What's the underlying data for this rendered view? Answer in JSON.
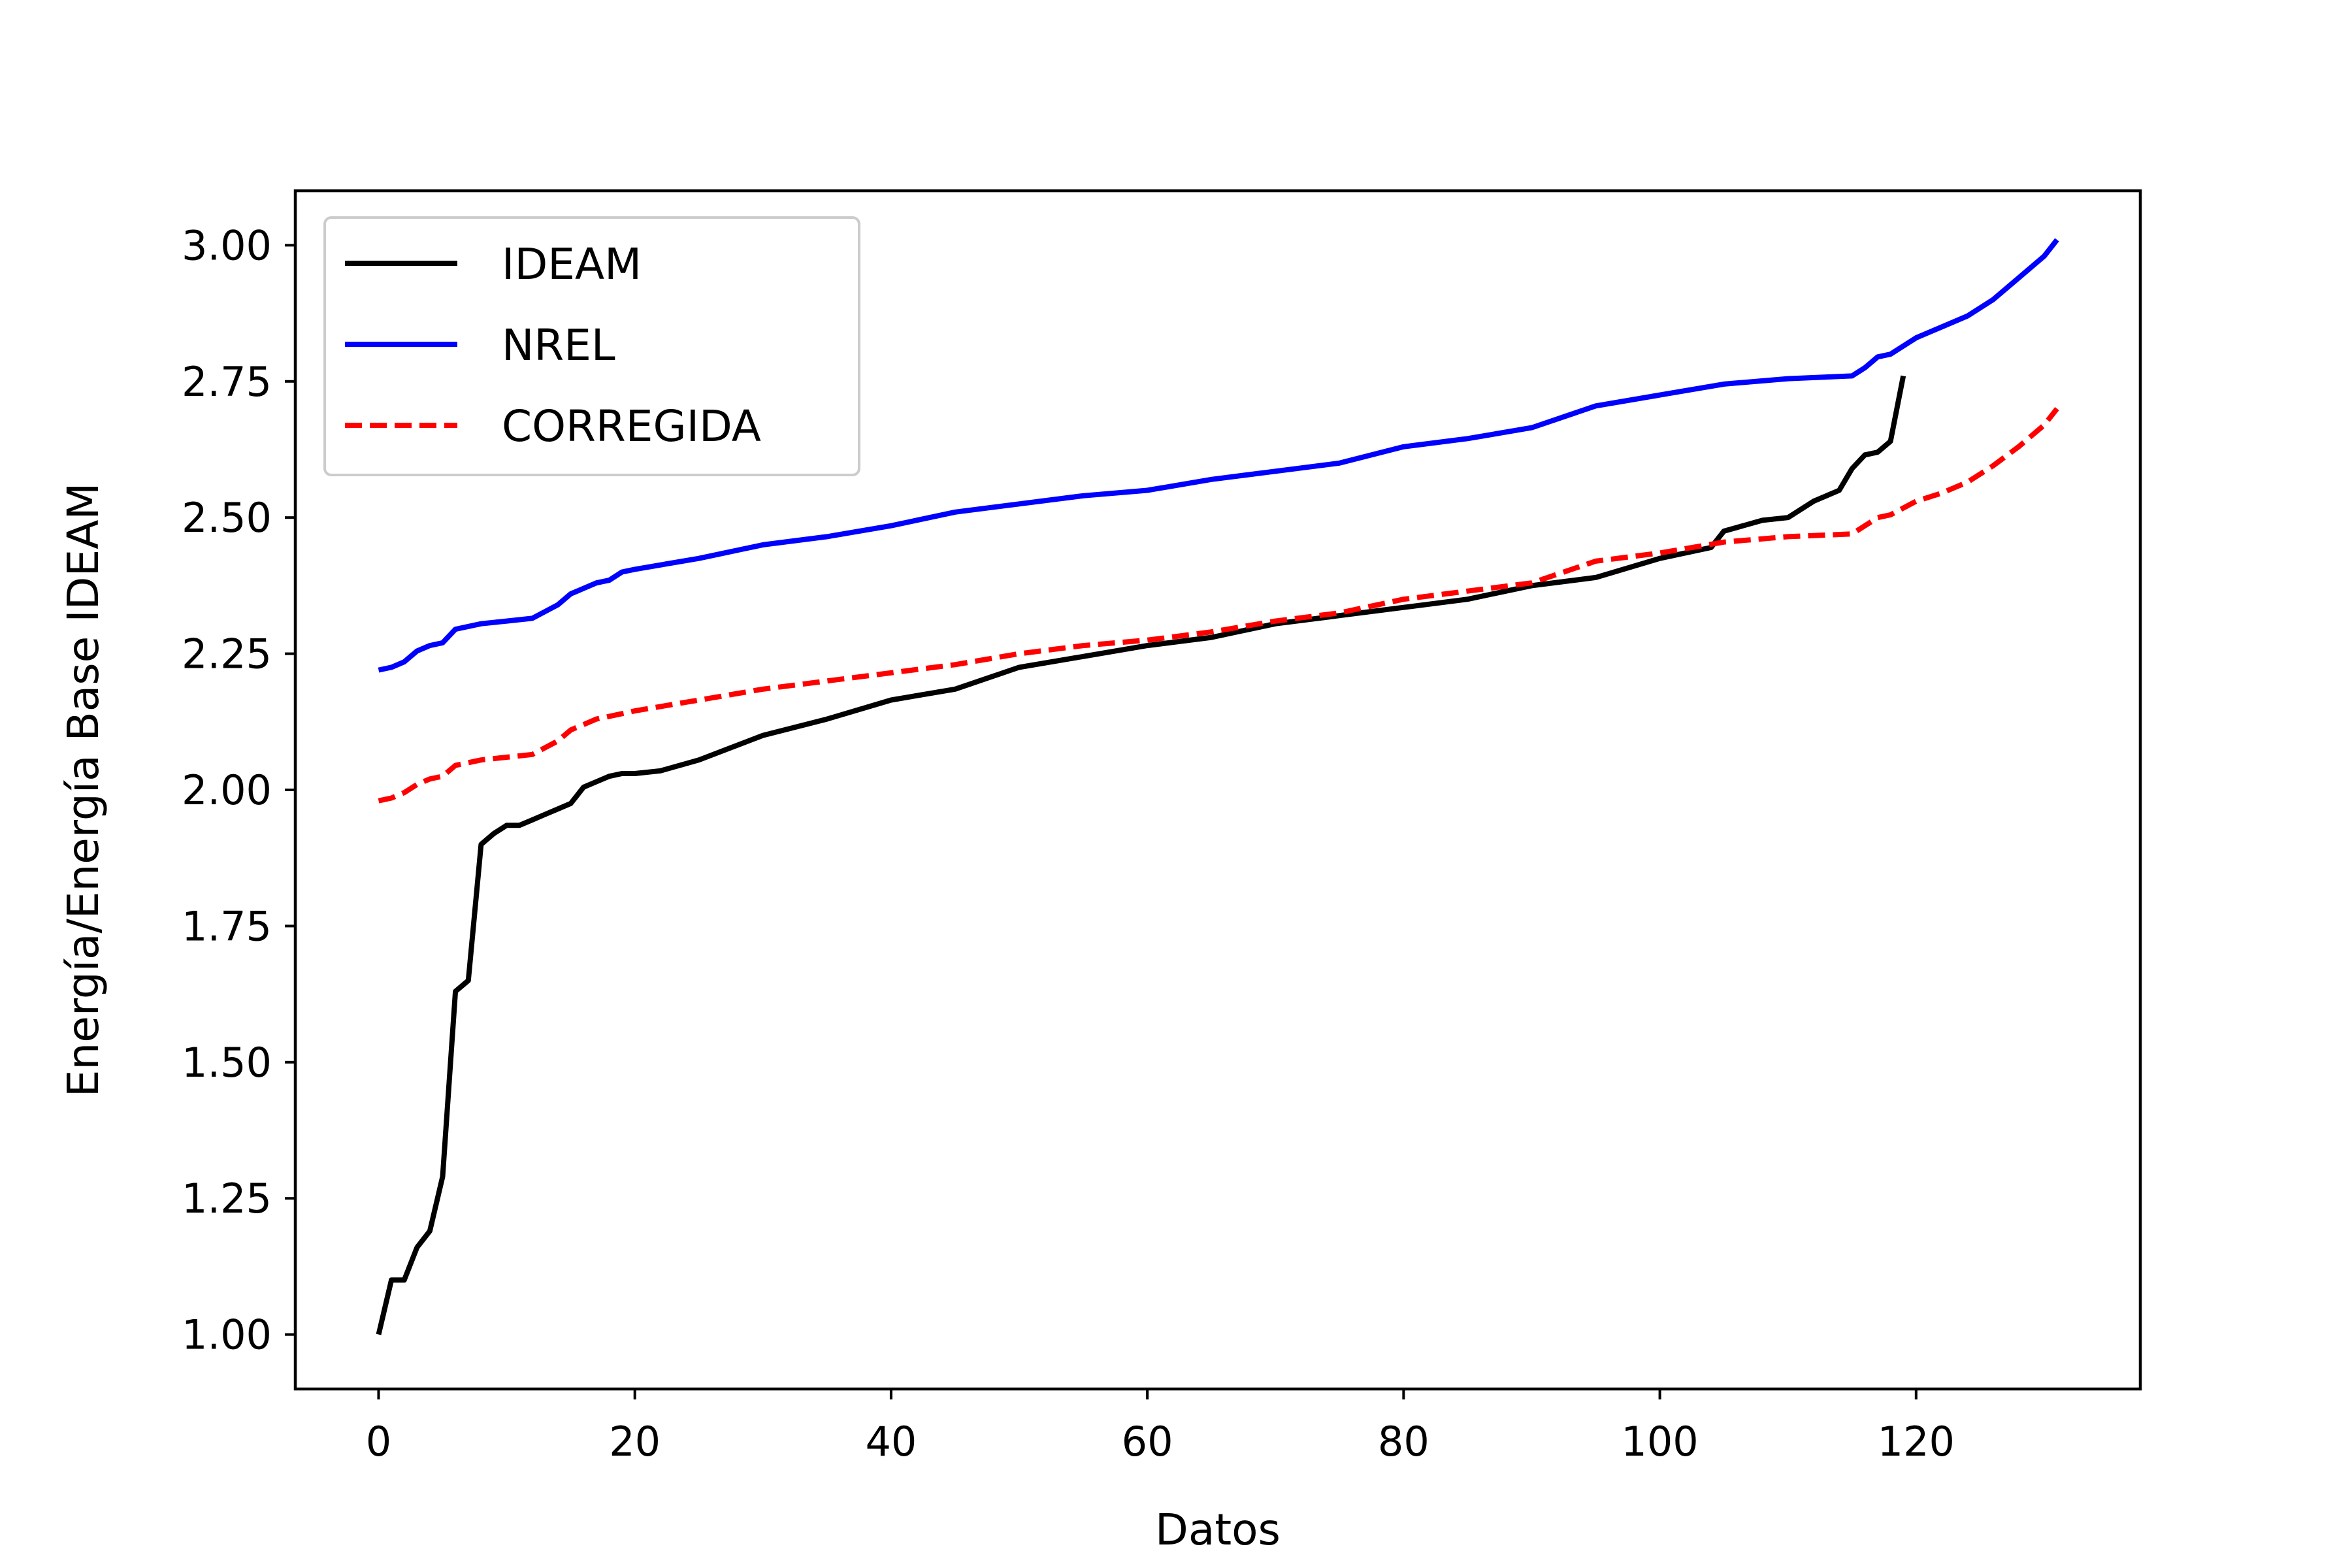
{
  "chart_data": {
    "type": "line",
    "title": "",
    "xlabel": "Datos",
    "ylabel": "Energía/Energía Base IDEAM",
    "xlim": [
      -6.5,
      137.5
    ],
    "ylim": [
      0.9,
      3.1
    ],
    "xticks": [
      0,
      20,
      40,
      60,
      80,
      100,
      120
    ],
    "yticks": [
      1.0,
      1.25,
      1.5,
      1.75,
      2.0,
      2.25,
      2.5,
      2.75,
      3.0
    ],
    "xtick_labels": [
      "0",
      "20",
      "40",
      "60",
      "80",
      "100",
      "120"
    ],
    "ytick_labels": [
      "1.00",
      "1.25",
      "1.50",
      "1.75",
      "2.00",
      "2.25",
      "2.50",
      "2.75",
      "3.00"
    ],
    "grid": false,
    "legend_position": "top-left",
    "series": [
      {
        "name": "IDEAM",
        "color": "#000000",
        "style": "solid",
        "x": [
          0,
          1,
          2,
          3,
          4,
          5,
          6,
          7,
          8,
          9,
          10,
          11,
          12,
          13,
          14,
          15,
          16,
          17,
          18,
          19,
          20,
          22,
          25,
          30,
          35,
          40,
          45,
          50,
          55,
          60,
          65,
          70,
          75,
          80,
          85,
          90,
          95,
          100,
          104,
          105,
          108,
          110,
          112,
          114,
          115,
          116,
          117,
          118,
          119
        ],
        "y": [
          1.0,
          1.1,
          1.1,
          1.16,
          1.19,
          1.29,
          1.63,
          1.65,
          1.9,
          1.92,
          1.935,
          1.935,
          1.945,
          1.955,
          1.965,
          1.975,
          2.005,
          2.015,
          2.025,
          2.03,
          2.03,
          2.035,
          2.055,
          2.1,
          2.13,
          2.165,
          2.185,
          2.225,
          2.245,
          2.265,
          2.28,
          2.305,
          2.32,
          2.335,
          2.35,
          2.375,
          2.39,
          2.425,
          2.445,
          2.475,
          2.495,
          2.5,
          2.53,
          2.55,
          2.59,
          2.615,
          2.62,
          2.64,
          2.76
        ]
      },
      {
        "name": "NREL",
        "color": "#0000ff",
        "style": "solid",
        "x": [
          0,
          1,
          2,
          3,
          4,
          5,
          6,
          8,
          10,
          12,
          14,
          15,
          16,
          17,
          18,
          19,
          20,
          25,
          30,
          35,
          40,
          45,
          50,
          55,
          60,
          65,
          70,
          75,
          80,
          85,
          90,
          95,
          100,
          105,
          110,
          115,
          116,
          117,
          118,
          120,
          122,
          124,
          126,
          128,
          130,
          131
        ],
        "y": [
          2.22,
          2.225,
          2.235,
          2.255,
          2.265,
          2.27,
          2.295,
          2.305,
          2.31,
          2.315,
          2.34,
          2.36,
          2.37,
          2.38,
          2.385,
          2.4,
          2.405,
          2.425,
          2.45,
          2.465,
          2.485,
          2.51,
          2.525,
          2.54,
          2.55,
          2.57,
          2.585,
          2.6,
          2.63,
          2.645,
          2.665,
          2.705,
          2.725,
          2.745,
          2.755,
          2.76,
          2.775,
          2.795,
          2.8,
          2.83,
          2.85,
          2.87,
          2.9,
          2.94,
          2.98,
          3.01
        ]
      },
      {
        "name": "CORREGIDA",
        "color": "#ff0000",
        "style": "dashed",
        "x": [
          0,
          1,
          2,
          3,
          4,
          5,
          6,
          8,
          10,
          12,
          14,
          15,
          16,
          17,
          18,
          19,
          20,
          25,
          30,
          35,
          40,
          45,
          50,
          55,
          60,
          65,
          70,
          75,
          80,
          85,
          90,
          95,
          100,
          105,
          110,
          115,
          116,
          117,
          118,
          120,
          122,
          124,
          126,
          128,
          130,
          131
        ],
        "y": [
          1.98,
          1.985,
          1.995,
          2.01,
          2.02,
          2.025,
          2.045,
          2.055,
          2.06,
          2.065,
          2.09,
          2.11,
          2.12,
          2.13,
          2.135,
          2.14,
          2.145,
          2.165,
          2.185,
          2.2,
          2.215,
          2.23,
          2.25,
          2.265,
          2.275,
          2.29,
          2.31,
          2.325,
          2.35,
          2.365,
          2.38,
          2.42,
          2.435,
          2.455,
          2.465,
          2.47,
          2.485,
          2.5,
          2.505,
          2.53,
          2.545,
          2.565,
          2.595,
          2.63,
          2.67,
          2.7
        ]
      }
    ]
  }
}
